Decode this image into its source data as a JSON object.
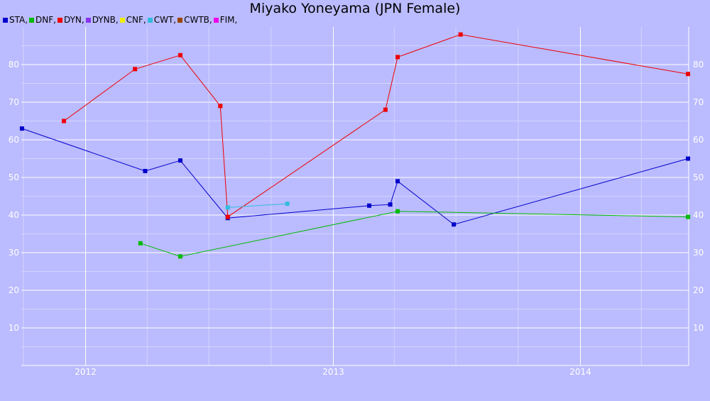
{
  "chart_data": {
    "type": "line",
    "title": "Miyako Yoneyama (JPN Female)",
    "xlabel": "",
    "ylabel": "",
    "x_axis": {
      "type": "time",
      "range": [
        "2011-09-28",
        "2014-06-10"
      ],
      "tick_labels": [
        "2012",
        "2013",
        "2014"
      ]
    },
    "y_axis": {
      "range": [
        0,
        90
      ],
      "tick_labels": [
        10,
        20,
        30,
        40,
        50,
        60,
        70,
        80
      ],
      "mirrored_right": true
    },
    "grid": true,
    "legend": {
      "placement": "top-left",
      "entries": [
        {
          "label": "STA,",
          "color": "#0000cc"
        },
        {
          "label": "DNF,",
          "color": "#00bb00"
        },
        {
          "label": "DYN,",
          "color": "#ee0000"
        },
        {
          "label": "DYNB,",
          "color": "#8833ee"
        },
        {
          "label": "CNF,",
          "color": "#eeee00"
        },
        {
          "label": "CWT,",
          "color": "#33bbdd"
        },
        {
          "label": "CWTB,",
          "color": "#994400"
        },
        {
          "label": "FIM,",
          "color": "#ee00ee"
        }
      ]
    },
    "series": [
      {
        "name": "STA",
        "color": "#0000cc",
        "points": [
          [
            "2011-09-29",
            63.0
          ],
          [
            "2012-03-29",
            51.7
          ],
          [
            "2012-05-20",
            54.5
          ],
          [
            "2012-07-29",
            39.2
          ],
          [
            "2013-02-23",
            42.5
          ],
          [
            "2013-03-26",
            42.8
          ],
          [
            "2013-04-06",
            49.0
          ],
          [
            "2013-06-28",
            37.5
          ],
          [
            "2014-06-09",
            55.0
          ]
        ]
      },
      {
        "name": "DNF",
        "color": "#00bb00",
        "points": [
          [
            "2012-03-22",
            32.5
          ],
          [
            "2012-05-20",
            29.0
          ],
          [
            "2013-04-06",
            41.0
          ],
          [
            "2014-06-09",
            39.5
          ]
        ]
      },
      {
        "name": "DYN",
        "color": "#ee0000",
        "points": [
          [
            "2011-11-30",
            65.0
          ],
          [
            "2012-03-14",
            78.8
          ],
          [
            "2012-05-20",
            82.5
          ],
          [
            "2012-07-18",
            69.0
          ],
          [
            "2012-07-29",
            39.5
          ],
          [
            "2013-03-19",
            68.0
          ],
          [
            "2013-04-06",
            82.0
          ],
          [
            "2013-07-08",
            88.0
          ],
          [
            "2014-06-09",
            77.5
          ]
        ]
      },
      {
        "name": "CWT",
        "color": "#33bbdd",
        "points": [
          [
            "2012-07-29",
            42.0
          ],
          [
            "2012-10-25",
            43.0
          ]
        ]
      }
    ]
  }
}
